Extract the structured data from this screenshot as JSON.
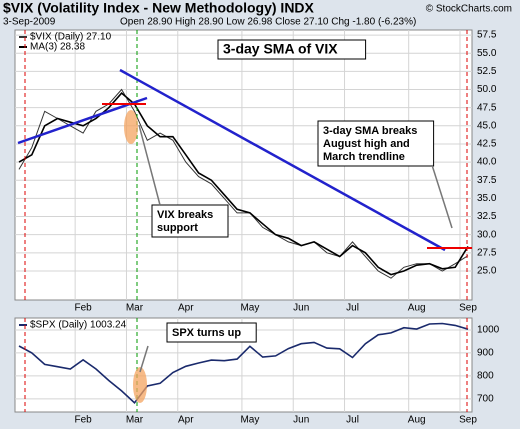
{
  "header": {
    "symbol": "$VIX (Volatility Index - New Methodology) INDX",
    "credit": "© StockCharts.com",
    "date": "3-Sep-2009",
    "quote": "Open 28.90 High 28.90 Low 26.98 Close 27.10 Chg -1.80 (-6.23%)"
  },
  "chart_data": [
    {
      "type": "line",
      "title": "3-day SMA of VIX",
      "annotations": [
        [
          "VIX breaks",
          "support"
        ],
        [
          "3-day SMA breaks",
          "August high and",
          "March trendline"
        ]
      ],
      "categories": [
        null,
        null,
        null,
        null,
        null,
        "Feb",
        null,
        null,
        null,
        "Mar",
        null,
        null,
        null,
        "Apr",
        null,
        null,
        null,
        null,
        "May",
        null,
        null,
        null,
        "Jun",
        null,
        null,
        null,
        "Jul",
        null,
        null,
        null,
        null,
        "Aug",
        null,
        null,
        null,
        "Sep"
      ],
      "series": [
        {
          "name": "$VIX (Daily) 27.10",
          "color": "#333333",
          "values": [
            39,
            42,
            47,
            46,
            45,
            44,
            47,
            48,
            50,
            47,
            43,
            44,
            43,
            40,
            38,
            37,
            35,
            33,
            33,
            31,
            30,
            29,
            28.5,
            29,
            27.5,
            27,
            29,
            27,
            25,
            24,
            25.5,
            26,
            26,
            25,
            26,
            27.1
          ]
        },
        {
          "name": "MA(3) 28.38",
          "color": "#000000",
          "values": [
            40,
            41,
            45,
            46,
            45.5,
            45,
            46,
            47.5,
            49.5,
            48,
            45,
            43.5,
            43.5,
            41,
            38.5,
            37.5,
            35.5,
            33.5,
            33,
            31.5,
            30,
            29.5,
            28.5,
            29,
            28,
            27,
            28.5,
            27.5,
            25.5,
            24.5,
            25,
            25.8,
            26,
            25.3,
            25.5,
            28.38
          ]
        }
      ],
      "ylim": [
        21,
        58.2
      ],
      "yticks": [
        {
          "value": 25,
          "label": "25.0"
        },
        {
          "value": 27.5,
          "label": "27.5"
        },
        {
          "value": 30,
          "label": "30.0"
        },
        {
          "value": 32.5,
          "label": "32.5"
        },
        {
          "value": 35,
          "label": "35.0"
        },
        {
          "value": 37.5,
          "label": "37.5"
        },
        {
          "value": 40,
          "label": "40.0"
        },
        {
          "value": 42.5,
          "label": "42.5"
        },
        {
          "value": 45,
          "label": "45.0"
        },
        {
          "value": 47.5,
          "label": "47.5"
        },
        {
          "value": 50,
          "label": "50.0"
        },
        {
          "value": 52.5,
          "label": "52.5"
        },
        {
          "value": 55,
          "label": "55.0"
        },
        {
          "value": 57.5,
          "label": "57.5"
        }
      ],
      "grid": true
    },
    {
      "type": "line",
      "title": "SPX turns up",
      "categories": [
        null,
        null,
        null,
        null,
        null,
        "Feb",
        null,
        null,
        null,
        "Mar",
        null,
        null,
        null,
        "Apr",
        null,
        null,
        null,
        null,
        "May",
        null,
        null,
        null,
        "Jun",
        null,
        null,
        null,
        "Jul",
        null,
        null,
        null,
        null,
        "Aug",
        null,
        null,
        null,
        "Sep"
      ],
      "series": [
        {
          "name": "$SPX (Daily) 1003.24",
          "color": "#1a2a6c",
          "values": [
            930,
            900,
            850,
            840,
            830,
            870,
            830,
            780,
            735,
            683,
            756,
            768,
            815,
            842,
            856,
            869,
            866,
            873,
            929,
            882,
            887,
            919,
            940,
            946,
            921,
            918,
            880,
            940,
            979,
            987,
            1010,
            1004,
            1026,
            1028,
            1020,
            1003.24
          ]
        }
      ],
      "ylim": [
        643,
        1052
      ],
      "yticks": [
        700,
        800,
        900,
        1000
      ],
      "grid": true
    }
  ]
}
